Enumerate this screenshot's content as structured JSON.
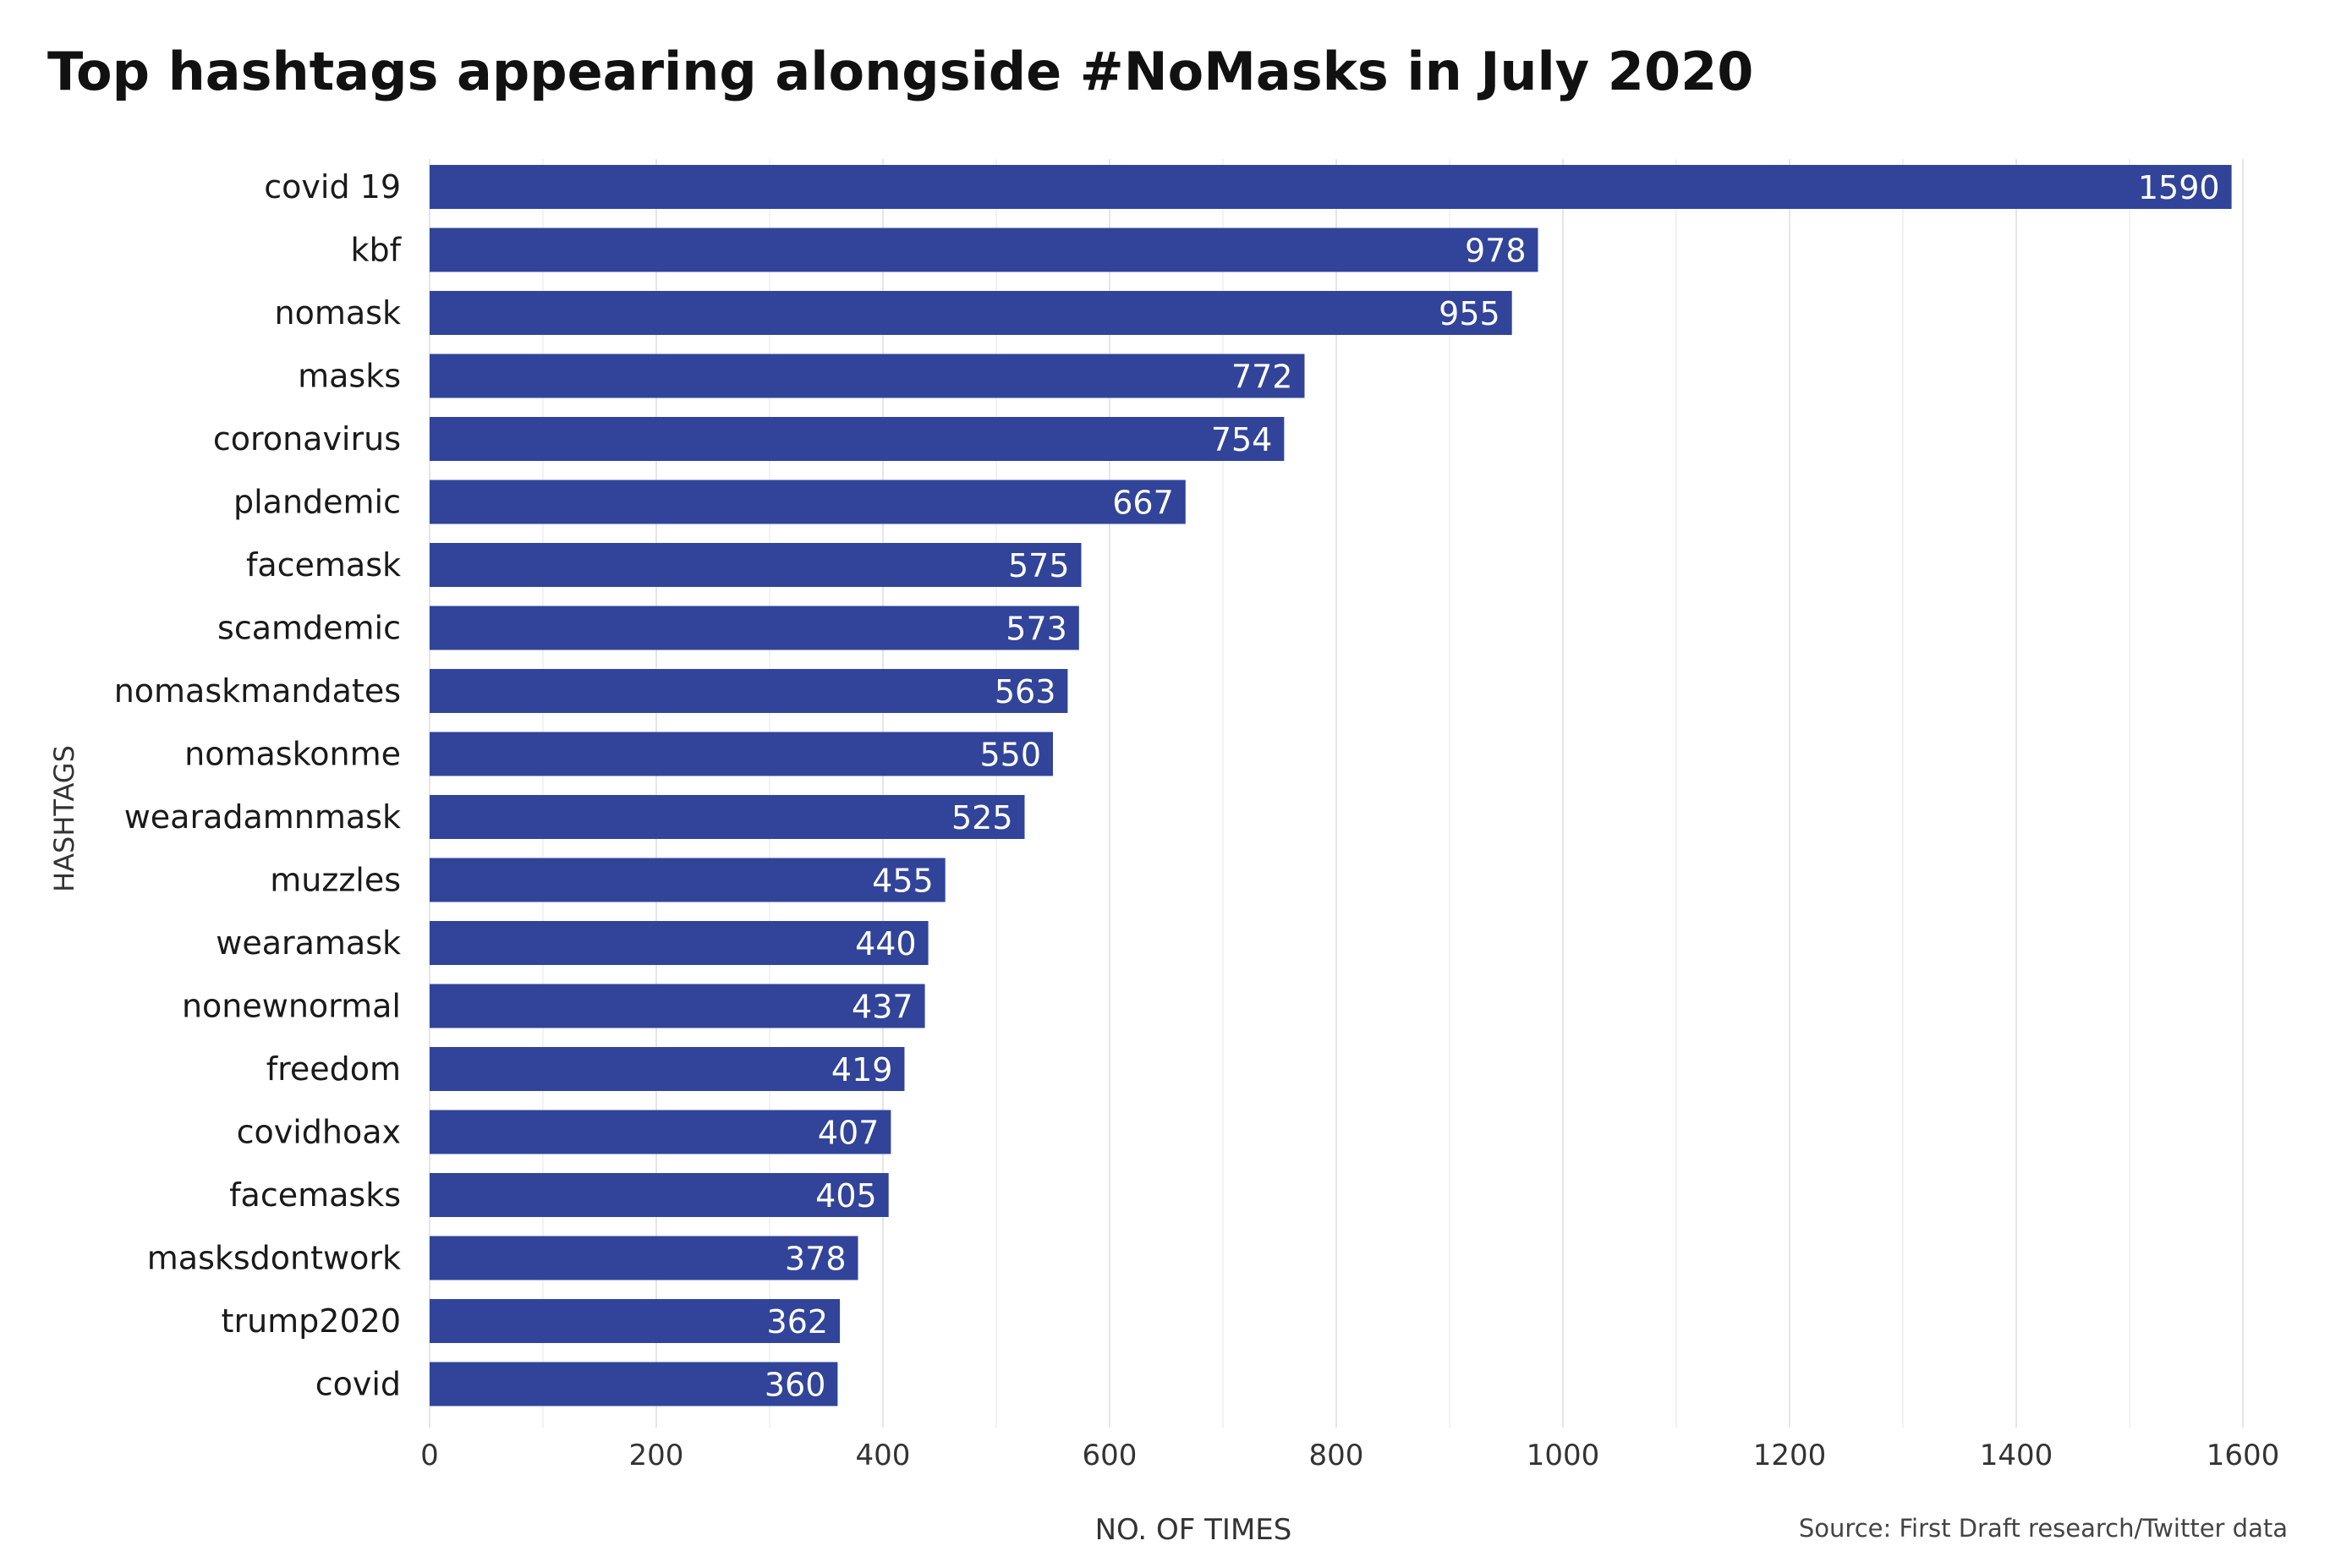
{
  "chart_data": {
    "type": "bar",
    "orientation": "horizontal",
    "title": "Top hashtags appearing alongside #NoMasks in July 2020",
    "xlabel": "NO. OF TIMES",
    "ylabel": "HASHTAGS",
    "source": "Source: First Draft research/Twitter data",
    "xlim": [
      0,
      1600
    ],
    "x_ticks": [
      0,
      200,
      400,
      600,
      800,
      1000,
      1200,
      1400,
      1600
    ],
    "grid": "vertical",
    "bar_color": "#31449a",
    "label_color": "#ffffff",
    "categories": [
      "covid 19",
      "kbf",
      "nomask",
      "masks",
      "coronavirus",
      "plandemic",
      "facemask",
      "scamdemic",
      "nomaskmandates",
      "nomaskonme",
      "wearadamnmask",
      "muzzles",
      "wearamask",
      "nonewnormal",
      "freedom",
      "covidhoax",
      "facemasks",
      "masksdontwork",
      "trump2020",
      "covid"
    ],
    "values": [
      1590,
      978,
      955,
      772,
      754,
      667,
      575,
      573,
      563,
      550,
      525,
      455,
      440,
      437,
      419,
      407,
      405,
      378,
      362,
      360
    ],
    "data_labels": [
      "1590",
      "978",
      "955",
      "772",
      "754",
      "667",
      "575",
      "573",
      "563",
      "550",
      "525",
      "455",
      "440",
      "437",
      "419",
      "407",
      "405",
      "378",
      "362",
      "360"
    ]
  }
}
